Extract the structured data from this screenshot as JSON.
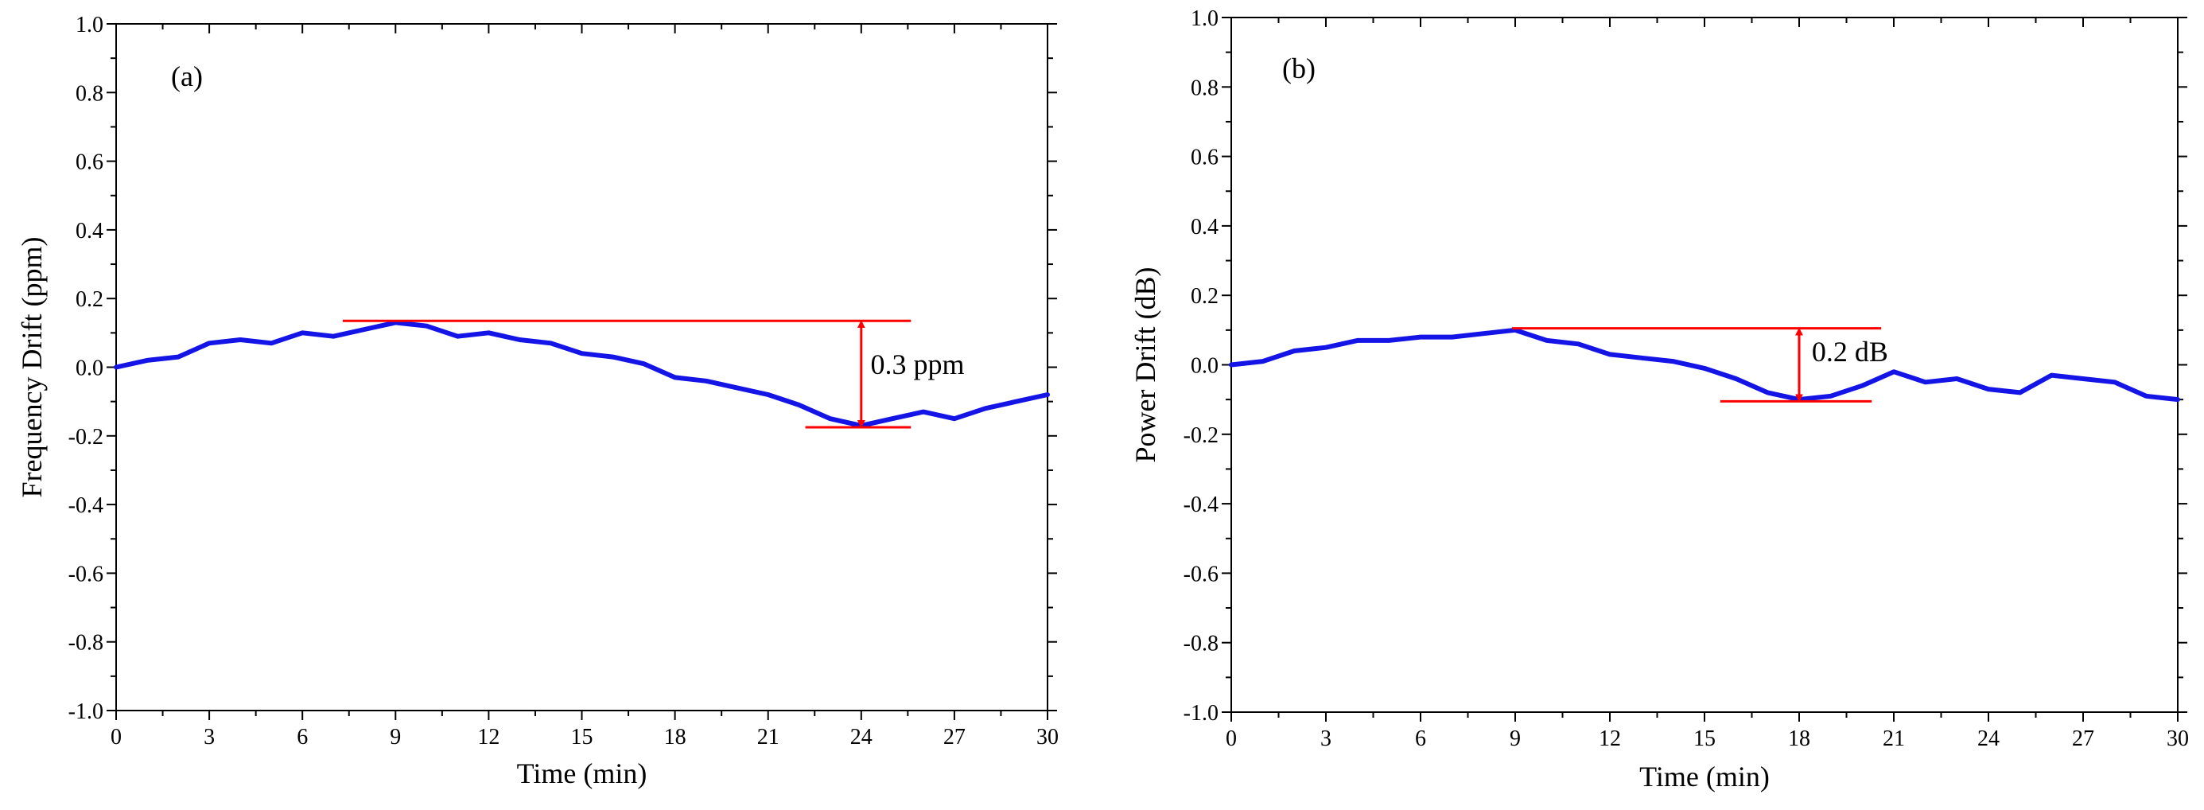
{
  "chart_data": [
    {
      "type": "line",
      "panel_label": "(a)",
      "xlabel": "Time (min)",
      "ylabel": "Frequency Drift (ppm)",
      "xlim": [
        0,
        30
      ],
      "ylim": [
        -1.0,
        1.0
      ],
      "x_ticks": [
        "0",
        "3",
        "6",
        "9",
        "12",
        "15",
        "18",
        "21",
        "24",
        "27",
        "30"
      ],
      "y_ticks": [
        "-1.0",
        "-0.8",
        "-0.6",
        "-0.4",
        "-0.2",
        "0.0",
        "0.2",
        "0.4",
        "0.6",
        "0.8",
        "1.0"
      ],
      "series": [
        {
          "name": "Frequency Drift",
          "color": "#1414e6",
          "x": [
            0,
            1,
            2,
            3,
            4,
            5,
            6,
            7,
            8,
            9,
            10,
            11,
            12,
            13,
            14,
            15,
            16,
            17,
            18,
            19,
            20,
            21,
            22,
            23,
            24,
            25,
            26,
            27,
            28,
            29,
            30
          ],
          "y": [
            0.0,
            0.02,
            0.03,
            0.07,
            0.08,
            0.07,
            0.1,
            0.09,
            0.11,
            0.13,
            0.12,
            0.09,
            0.1,
            0.08,
            0.07,
            0.04,
            0.03,
            0.01,
            -0.03,
            -0.04,
            -0.06,
            -0.08,
            -0.11,
            -0.15,
            -0.17,
            -0.15,
            -0.13,
            -0.15,
            -0.12,
            -0.1,
            -0.08
          ]
        }
      ],
      "annotation": {
        "label": "0.3 ppm",
        "color": "#ff0000",
        "upper_line": {
          "x_start": 7.3,
          "x_end": 25.6,
          "y": 0.135
        },
        "lower_line": {
          "x_start": 22.2,
          "x_end": 25.6,
          "y": -0.175
        },
        "arrow_x": 24.0,
        "label_pos": {
          "x": 24.3,
          "y": -0.02
        }
      }
    },
    {
      "type": "line",
      "panel_label": "(b)",
      "xlabel": "Time (min)",
      "ylabel": "Power Drift (dB)",
      "xlim": [
        0,
        30
      ],
      "ylim": [
        -1.0,
        1.0
      ],
      "x_ticks": [
        "0",
        "3",
        "6",
        "9",
        "12",
        "15",
        "18",
        "21",
        "24",
        "27",
        "30"
      ],
      "y_ticks": [
        "-1.0",
        "-0.8",
        "-0.6",
        "-0.4",
        "-0.2",
        "0.0",
        "0.2",
        "0.4",
        "0.6",
        "0.8",
        "1.0"
      ],
      "series": [
        {
          "name": "Power Drift",
          "color": "#1414e6",
          "x": [
            0,
            1,
            2,
            3,
            4,
            5,
            6,
            7,
            8,
            9,
            10,
            11,
            12,
            13,
            14,
            15,
            16,
            17,
            18,
            19,
            20,
            21,
            22,
            23,
            24,
            25,
            26,
            27,
            28,
            29,
            30
          ],
          "y": [
            0.0,
            0.01,
            0.04,
            0.05,
            0.07,
            0.07,
            0.08,
            0.08,
            0.09,
            0.1,
            0.07,
            0.06,
            0.03,
            0.02,
            0.01,
            -0.01,
            -0.04,
            -0.08,
            -0.1,
            -0.09,
            -0.06,
            -0.02,
            -0.05,
            -0.04,
            -0.07,
            -0.08,
            -0.03,
            -0.04,
            -0.05,
            -0.09,
            -0.1
          ]
        }
      ],
      "annotation": {
        "label": "0.2 dB",
        "color": "#ff0000",
        "upper_line": {
          "x_start": 8.9,
          "x_end": 20.6,
          "y": 0.105
        },
        "lower_line": {
          "x_start": 15.5,
          "x_end": 20.3,
          "y": -0.105
        },
        "arrow_x": 18.0,
        "label_pos": {
          "x": 18.4,
          "y": 0.01
        }
      }
    }
  ]
}
